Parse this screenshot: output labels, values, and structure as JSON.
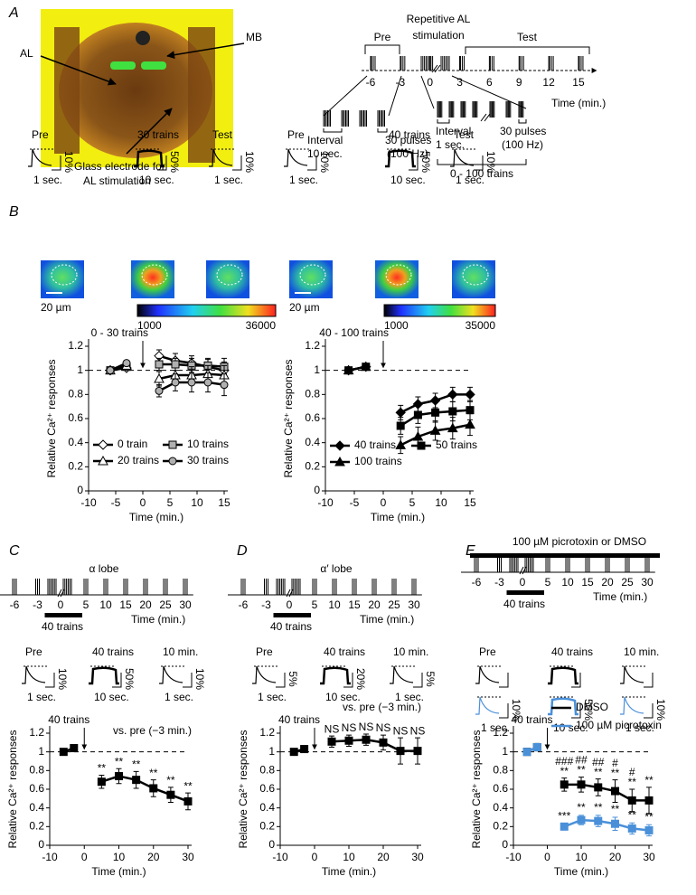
{
  "panel_labels": [
    "A",
    "B",
    "C",
    "D",
    "E"
  ],
  "panel_a": {
    "photo_labels": {
      "al": "AL",
      "mb": "MB",
      "electrode": [
        "Glass electrode for",
        "AL stimulation"
      ]
    },
    "protocol": {
      "pre": "Pre",
      "repetitive": [
        "Repetitive AL",
        "stimulation"
      ],
      "test": "Test",
      "time_ticks": [
        -6,
        -3,
        0,
        3,
        6,
        9,
        12,
        15
      ],
      "time_label": "Time (min.)",
      "pre_interval": [
        "Interval",
        "10 sec."
      ],
      "pre_pulses": [
        "30 pulses",
        "(100 Hz)"
      ],
      "train_interval": [
        "Interval",
        "1 sec."
      ],
      "train_pulses": [
        "30 pulses",
        "(100 Hz)"
      ],
      "train_count": "0 - 100 trains"
    }
  },
  "panel_b": {
    "groups": [
      {
        "insets": [
          {
            "label": "Pre",
            "y_scale": "10%",
            "x_scale": "1 sec."
          },
          {
            "label": "30 trains",
            "y_scale": "50%",
            "x_scale": "10 sec."
          },
          {
            "label": "Test",
            "y_scale": "10%",
            "x_scale": "1 sec."
          }
        ],
        "scale_bar": "20 µm",
        "colorbar": [
          1000,
          36000
        ]
      },
      {
        "insets": [
          {
            "label": "Pre",
            "y_scale": "10%",
            "x_scale": "1 sec."
          },
          {
            "label": "40 trains",
            "y_scale": "50%",
            "x_scale": "10 sec."
          },
          {
            "label": "Test",
            "y_scale": "10%",
            "x_scale": "1 sec."
          }
        ],
        "scale_bar": "20 µm",
        "colorbar": [
          1000,
          35000
        ]
      }
    ]
  },
  "panel_c": {
    "title": "α lobe",
    "timeline": {
      "ticks": [
        -6,
        -3,
        0,
        5,
        10,
        15,
        20,
        25,
        30
      ],
      "time_label": "Time (min.)",
      "train_label": "40 trains"
    },
    "insets": [
      {
        "label": "Pre",
        "y_scale": "10%",
        "x_scale": "1 sec."
      },
      {
        "label": "40 trains",
        "y_scale": "50%",
        "x_scale": "10 sec."
      },
      {
        "label": "10 min.",
        "y_scale": "10%",
        "x_scale": "1 sec."
      }
    ]
  },
  "panel_d": {
    "title": "α′ lobe",
    "timeline": {
      "ticks": [
        -6,
        -3,
        0,
        5,
        10,
        15,
        20,
        25,
        30
      ],
      "time_label": "Time (min.)",
      "train_label": "40 trains"
    },
    "insets": [
      {
        "label": "Pre",
        "y_scale": "5%",
        "x_scale": "1 sec."
      },
      {
        "label": "40 trains",
        "y_scale": "20%",
        "x_scale": "10 sec."
      },
      {
        "label": "10 min.",
        "y_scale": "5%",
        "x_scale": "1 sec."
      }
    ]
  },
  "panel_e": {
    "title": "100 µM picrotoxin or DMSO",
    "timeline": {
      "ticks": [
        -6,
        -3,
        0,
        5,
        10,
        15,
        20,
        25,
        30
      ],
      "time_label": "Time (min.)",
      "train_label": "40 trains"
    },
    "insets": [
      {
        "label": "Pre",
        "y_scale": "10%",
        "x_scale": "1 sec."
      },
      {
        "label": "40 trains",
        "y_scale": "50%",
        "x_scale": "10 sec."
      },
      {
        "label": "10 min.",
        "y_scale": "10%",
        "x_scale": "1 sec."
      }
    ]
  },
  "chart_data": [
    {
      "type": "line",
      "annotation": "0 - 30 trains",
      "stimulus_time": 0,
      "reference_line": 1,
      "x_label": "Time (min.)",
      "y_label": "Relative Ca²⁺ responses",
      "xlim": [
        -10,
        15
      ],
      "ylim": [
        0,
        1.2
      ],
      "xticks": [
        -10,
        -5,
        0,
        5,
        10,
        15
      ],
      "yticks": [
        0,
        0.2,
        0.4,
        0.6,
        0.8,
        1,
        1.2
      ],
      "series": [
        {
          "name": "0 train",
          "color": "#000000",
          "marker": "diamond",
          "marker_fill": "#ffffff",
          "x": [
            -6,
            -3,
            null,
            3,
            6,
            9,
            12,
            15
          ],
          "values": [
            1,
            1.02,
            null,
            1.12,
            1.08,
            1.06,
            1.03,
            1.0
          ],
          "errors": [
            0.02,
            0.02,
            null,
            0.05,
            0.06,
            0.06,
            0.06,
            0.07
          ]
        },
        {
          "name": "10 trains",
          "color": "#000000",
          "marker": "square",
          "marker_fill": "#b0b0b0",
          "x": [
            -6,
            -3,
            null,
            3,
            6,
            9,
            12,
            15
          ],
          "values": [
            1,
            1.03,
            null,
            1.05,
            1.05,
            1.04,
            1.04,
            1.03
          ],
          "errors": [
            0.02,
            0.02,
            null,
            0.05,
            0.05,
            0.06,
            0.06,
            0.07
          ]
        },
        {
          "name": "20 trains",
          "color": "#000000",
          "marker": "triangle",
          "marker_fill": "#ffffff",
          "x": [
            -6,
            -3,
            null,
            3,
            6,
            9,
            12,
            15
          ],
          "values": [
            1,
            1.04,
            null,
            0.93,
            0.96,
            0.96,
            0.97,
            0.96
          ],
          "errors": [
            0.02,
            0.02,
            null,
            0.06,
            0.06,
            0.07,
            0.07,
            0.08
          ]
        },
        {
          "name": "30 trains",
          "color": "#000000",
          "marker": "circle",
          "marker_fill": "#b0b0b0",
          "x": [
            -6,
            -3,
            null,
            3,
            6,
            9,
            12,
            15
          ],
          "values": [
            1,
            1.06,
            null,
            0.83,
            0.9,
            0.9,
            0.9,
            0.88
          ],
          "errors": [
            0.02,
            0.02,
            null,
            0.05,
            0.07,
            0.08,
            0.08,
            0.09
          ]
        }
      ]
    },
    {
      "type": "line",
      "annotation": "40 - 100 trains",
      "stimulus_time": 0,
      "reference_line": 1,
      "x_label": "Time (min.)",
      "y_label": "Relative Ca²⁺ responses",
      "xlim": [
        -10,
        15
      ],
      "ylim": [
        0,
        1.2
      ],
      "xticks": [
        -10,
        -5,
        0,
        5,
        10,
        15
      ],
      "yticks": [
        0,
        0.2,
        0.4,
        0.6,
        0.8,
        1,
        1.2
      ],
      "series": [
        {
          "name": "40 trains",
          "color": "#000000",
          "marker": "diamond",
          "marker_fill": "#000000",
          "x": [
            -6,
            -3,
            null,
            3,
            6,
            9,
            12,
            15
          ],
          "values": [
            1,
            1.03,
            null,
            0.65,
            0.72,
            0.75,
            0.8,
            0.8
          ],
          "errors": [
            0.02,
            0.02,
            null,
            0.06,
            0.06,
            0.06,
            0.06,
            0.06
          ]
        },
        {
          "name": "50 trains",
          "color": "#000000",
          "marker": "square",
          "marker_fill": "#000000",
          "x": [
            -6,
            -3,
            null,
            3,
            6,
            9,
            12,
            15
          ],
          "values": [
            1,
            1.03,
            null,
            0.54,
            0.63,
            0.65,
            0.66,
            0.67
          ],
          "errors": [
            0.02,
            0.02,
            null,
            0.07,
            0.07,
            0.08,
            0.08,
            0.08
          ]
        },
        {
          "name": "100 trains",
          "color": "#000000",
          "marker": "triangle",
          "marker_fill": "#000000",
          "x": [
            -6,
            -3,
            null,
            3,
            6,
            9,
            12,
            15
          ],
          "values": [
            1,
            1.03,
            null,
            0.38,
            0.45,
            0.5,
            0.52,
            0.55
          ],
          "errors": [
            0.02,
            0.02,
            null,
            0.07,
            0.08,
            0.08,
            0.09,
            0.09
          ]
        }
      ]
    },
    {
      "type": "line",
      "annotation": "40 trains",
      "note": "vs. pre (−3 min.)",
      "stimulus_time": 0,
      "reference_line": 1,
      "x_label": "Time (min.)",
      "y_label": "Relative Ca²⁺ responses",
      "xlim": [
        -10,
        30
      ],
      "ylim": [
        0,
        1.2
      ],
      "xticks": [
        -10,
        0,
        10,
        20,
        30
      ],
      "yticks": [
        0,
        0.2,
        0.4,
        0.6,
        0.8,
        1,
        1.2
      ],
      "series": [
        {
          "color": "#000000",
          "marker": "square",
          "marker_fill": "#000000",
          "x": [
            -6,
            -3,
            null,
            5,
            10,
            15,
            20,
            25,
            30
          ],
          "values": [
            1,
            1.04,
            null,
            0.68,
            0.74,
            0.7,
            0.61,
            0.54,
            0.47
          ],
          "errors": [
            0.02,
            0.02,
            null,
            0.07,
            0.08,
            0.09,
            0.09,
            0.08,
            0.09
          ],
          "significance": [
            null,
            null,
            null,
            "**",
            "**",
            "**",
            "**",
            "**",
            "**"
          ]
        }
      ]
    },
    {
      "type": "line",
      "annotation": "40 trains",
      "note": "vs. pre (−3 min.)",
      "stimulus_time": 0,
      "reference_line": 1,
      "x_label": "Time (min.)",
      "y_label": "Relative Ca²⁺ responses",
      "xlim": [
        -10,
        30
      ],
      "ylim": [
        0,
        1.2
      ],
      "xticks": [
        -10,
        0,
        10,
        20,
        30
      ],
      "yticks": [
        0,
        0.2,
        0.4,
        0.6,
        0.8,
        1,
        1.2
      ],
      "series": [
        {
          "color": "#000000",
          "marker": "square",
          "marker_fill": "#000000",
          "x": [
            -6,
            -3,
            null,
            5,
            10,
            15,
            20,
            25,
            30
          ],
          "values": [
            1,
            1.03,
            null,
            1.11,
            1.12,
            1.13,
            1.1,
            1.01,
            1.01
          ],
          "errors": [
            0.02,
            0.03,
            null,
            0.06,
            0.06,
            0.06,
            0.08,
            0.14,
            0.14
          ],
          "significance": [
            null,
            null,
            null,
            "NS",
            "NS",
            "NS",
            "NS",
            "NS",
            "NS"
          ]
        }
      ]
    },
    {
      "type": "line",
      "annotation": "40 trains",
      "stimulus_time": 0,
      "reference_line": 1,
      "x_label": "Time (min.)",
      "y_label": "Relative Ca²⁺ responses",
      "xlim": [
        -10,
        30
      ],
      "ylim": [
        0,
        1.2
      ],
      "xticks": [
        -10,
        0,
        10,
        20,
        30
      ],
      "yticks": [
        0,
        0.2,
        0.4,
        0.6,
        0.8,
        1,
        1.2
      ],
      "series": [
        {
          "name": "DMSO",
          "color": "#000000",
          "marker": "square",
          "marker_fill": "#000000",
          "x": [
            -6,
            -3,
            null,
            5,
            10,
            15,
            20,
            25,
            30
          ],
          "values": [
            1,
            1.05,
            null,
            0.65,
            0.65,
            0.62,
            0.58,
            0.48,
            0.48
          ],
          "errors": [
            0.02,
            0.04,
            null,
            0.07,
            0.08,
            0.09,
            0.12,
            0.12,
            0.14
          ],
          "significance": [
            null,
            null,
            null,
            "**",
            "**",
            "**",
            "**",
            "**",
            "**"
          ],
          "significance_2": [
            null,
            null,
            null,
            "###",
            "##",
            "##",
            "#",
            "#",
            null
          ]
        },
        {
          "name": "100 µM picrotoxin",
          "color": "#4a90d9",
          "marker": "square",
          "marker_fill": "#4a90d9",
          "x": [
            -6,
            -3,
            null,
            5,
            10,
            15,
            20,
            25,
            30
          ],
          "values": [
            1,
            1.05,
            null,
            0.2,
            0.27,
            0.26,
            0.23,
            0.18,
            0.16
          ],
          "errors": [
            0.02,
            0.03,
            null,
            0.03,
            0.05,
            0.06,
            0.07,
            0.06,
            0.06
          ],
          "significance": [
            null,
            null,
            null,
            "***",
            "**",
            "**",
            "**",
            "**",
            "**"
          ]
        }
      ]
    }
  ]
}
